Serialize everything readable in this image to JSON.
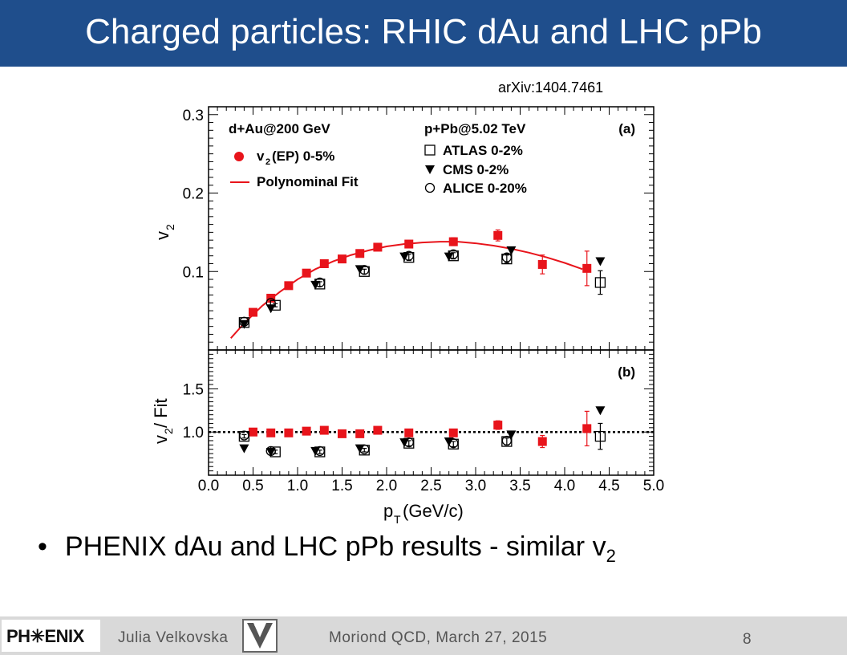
{
  "slide": {
    "title": "Charged particles: RHIC dAu and  LHC pPb",
    "reference": "arXiv:1404.7461",
    "bullet": {
      "text": "PHENIX  dAu and LHC pPb results - similar v",
      "subscript": "2"
    },
    "footer": {
      "logo": "PH✳ENIX",
      "author": "Julia Velkovska",
      "event": "Moriond QCD, March 27, 2015",
      "page_number": "8"
    }
  },
  "colors": {
    "title_bar": "#1f4e8c",
    "phenix": "#e8141b",
    "lhc": "#000000",
    "footer": "#d9d9d9"
  },
  "chart_data": [
    {
      "type": "scatter",
      "panel_label": "(a)",
      "ylabel": "v",
      "ylabel_sub": "2",
      "xlim": [
        0,
        5
      ],
      "ylim": [
        0,
        0.31
      ],
      "yticks": [
        0.1,
        0.2,
        0.3
      ],
      "ytick_labels": [
        "0.1",
        "0.2",
        "0.3"
      ],
      "left_header": "d+Au@200 GeV",
      "right_header": "p+Pb@5.02 TeV",
      "legend_left": [
        {
          "label": "v",
          "sub": "2",
          "suffix": "(EP) 0-5%",
          "marker": "filled-circle"
        },
        {
          "label": "Polynominal Fit",
          "sub": "",
          "suffix": "",
          "marker": "line"
        }
      ],
      "legend_right": [
        {
          "label": "ATLAS 0-2%",
          "marker": "open-square"
        },
        {
          "label": "CMS 0-2%",
          "marker": "filled-triangle-down"
        },
        {
          "label": "ALICE 0-20%",
          "marker": "open-circle"
        }
      ],
      "series": [
        {
          "name": "v2(EP) 0-5%",
          "marker": "red-square",
          "x": [
            0.5,
            0.7,
            0.9,
            1.1,
            1.3,
            1.5,
            1.7,
            1.9,
            2.25,
            2.75,
            3.25,
            3.75,
            4.25
          ],
          "y": [
            0.048,
            0.066,
            0.082,
            0.098,
            0.11,
            0.116,
            0.123,
            0.131,
            0.135,
            0.138,
            0.146,
            0.109,
            0.104
          ],
          "err": [
            0.003,
            0.003,
            0.003,
            0.003,
            0.003,
            0.003,
            0.003,
            0.004,
            0.004,
            0.005,
            0.007,
            0.012,
            0.022
          ]
        },
        {
          "name": "ATLAS 0-2%",
          "marker": "open-square",
          "x": [
            0.4,
            0.75,
            1.25,
            1.75,
            2.25,
            2.75,
            3.35,
            4.4
          ],
          "y": [
            0.035,
            0.057,
            0.084,
            0.1,
            0.118,
            0.12,
            0.116,
            0.086
          ],
          "err": [
            0.002,
            0.002,
            0.003,
            0.003,
            0.004,
            0.004,
            0.005,
            0.015
          ]
        },
        {
          "name": "CMS 0-2%",
          "marker": "filled-triangle-down",
          "x": [
            0.4,
            0.7,
            1.2,
            1.7,
            2.2,
            2.7,
            3.4,
            4.4
          ],
          "y": [
            0.033,
            0.053,
            0.083,
            0.103,
            0.119,
            0.119,
            0.127,
            0.113
          ],
          "err": [
            0,
            0,
            0,
            0,
            0,
            0,
            0,
            0
          ]
        },
        {
          "name": "ALICE 0-20%",
          "marker": "open-circle",
          "x": [
            0.4,
            0.7,
            1.25,
            1.75,
            2.25,
            2.75,
            3.35
          ],
          "y": [
            0.036,
            0.06,
            0.086,
            0.102,
            0.12,
            0.122,
            0.118
          ],
          "err": [
            0,
            0,
            0,
            0,
            0,
            0,
            0
          ]
        }
      ],
      "fit": {
        "name": "Polynominal Fit",
        "x": [
          0.25,
          0.4,
          0.6,
          0.8,
          1.0,
          1.2,
          1.4,
          1.6,
          1.8,
          2.0,
          2.2,
          2.4,
          2.6,
          2.8,
          3.0,
          3.2,
          3.4,
          3.6,
          3.8,
          4.0,
          4.2
        ],
        "y": [
          0.015,
          0.034,
          0.056,
          0.074,
          0.09,
          0.103,
          0.113,
          0.121,
          0.127,
          0.132,
          0.135,
          0.137,
          0.138,
          0.138,
          0.136,
          0.133,
          0.129,
          0.124,
          0.118,
          0.111,
          0.103
        ]
      }
    },
    {
      "type": "scatter",
      "panel_label": "(b)",
      "ylabel": "v",
      "ylabel_sub": "2",
      "ylabel_suffix": " / Fit",
      "xlabel": "p",
      "xlabel_sub": "T",
      "xlabel_suffix": "(GeV/c)",
      "xlim": [
        0,
        5
      ],
      "ylim": [
        0.5,
        1.95
      ],
      "xticks": [
        0.0,
        0.5,
        1.0,
        1.5,
        2.0,
        2.5,
        3.0,
        3.5,
        4.0,
        4.5,
        5.0
      ],
      "xtick_labels": [
        "0.0",
        "0.5",
        "1.0",
        "1.5",
        "2.0",
        "2.5",
        "3.0",
        "3.5",
        "4.0",
        "4.5",
        "5.0"
      ],
      "yticks": [
        1.0,
        1.5
      ],
      "ytick_labels": [
        "1.0",
        "1.5"
      ],
      "reference_line": 1.0,
      "series": [
        {
          "name": "v2(EP) 0-5%",
          "marker": "red-square",
          "x": [
            0.5,
            0.7,
            0.9,
            1.1,
            1.3,
            1.5,
            1.7,
            1.9,
            2.25,
            2.75,
            3.25,
            3.75,
            4.25
          ],
          "y": [
            1.0,
            0.99,
            0.99,
            1.01,
            1.02,
            0.98,
            0.98,
            1.02,
            0.99,
            0.99,
            1.08,
            0.89,
            1.04
          ],
          "err": [
            0.03,
            0.03,
            0.03,
            0.03,
            0.03,
            0.03,
            0.03,
            0.03,
            0.03,
            0.04,
            0.05,
            0.07,
            0.2
          ]
        },
        {
          "name": "ATLAS 0-2%",
          "marker": "open-square",
          "x": [
            0.4,
            0.75,
            1.25,
            1.75,
            2.25,
            2.75,
            3.35,
            4.4
          ],
          "y": [
            0.95,
            0.77,
            0.77,
            0.79,
            0.87,
            0.86,
            0.89,
            0.95
          ],
          "err": [
            0.02,
            0.02,
            0.02,
            0.02,
            0.03,
            0.03,
            0.04,
            0.15
          ]
        },
        {
          "name": "CMS 0-2%",
          "marker": "filled-triangle-down",
          "x": [
            0.4,
            0.7,
            1.2,
            1.7,
            2.2,
            2.7,
            3.4,
            4.4
          ],
          "y": [
            0.81,
            0.77,
            0.78,
            0.81,
            0.88,
            0.89,
            0.97,
            1.25
          ],
          "err": [
            0,
            0,
            0,
            0,
            0,
            0,
            0,
            0
          ]
        },
        {
          "name": "ALICE 0-20%",
          "marker": "open-circle",
          "x": [
            0.4,
            0.7,
            1.25,
            1.75,
            2.25,
            2.75,
            3.35
          ],
          "y": [
            0.96,
            0.78,
            0.78,
            0.8,
            0.88,
            0.87,
            0.9
          ],
          "err": [
            0,
            0,
            0,
            0,
            0,
            0,
            0
          ]
        }
      ]
    }
  ]
}
